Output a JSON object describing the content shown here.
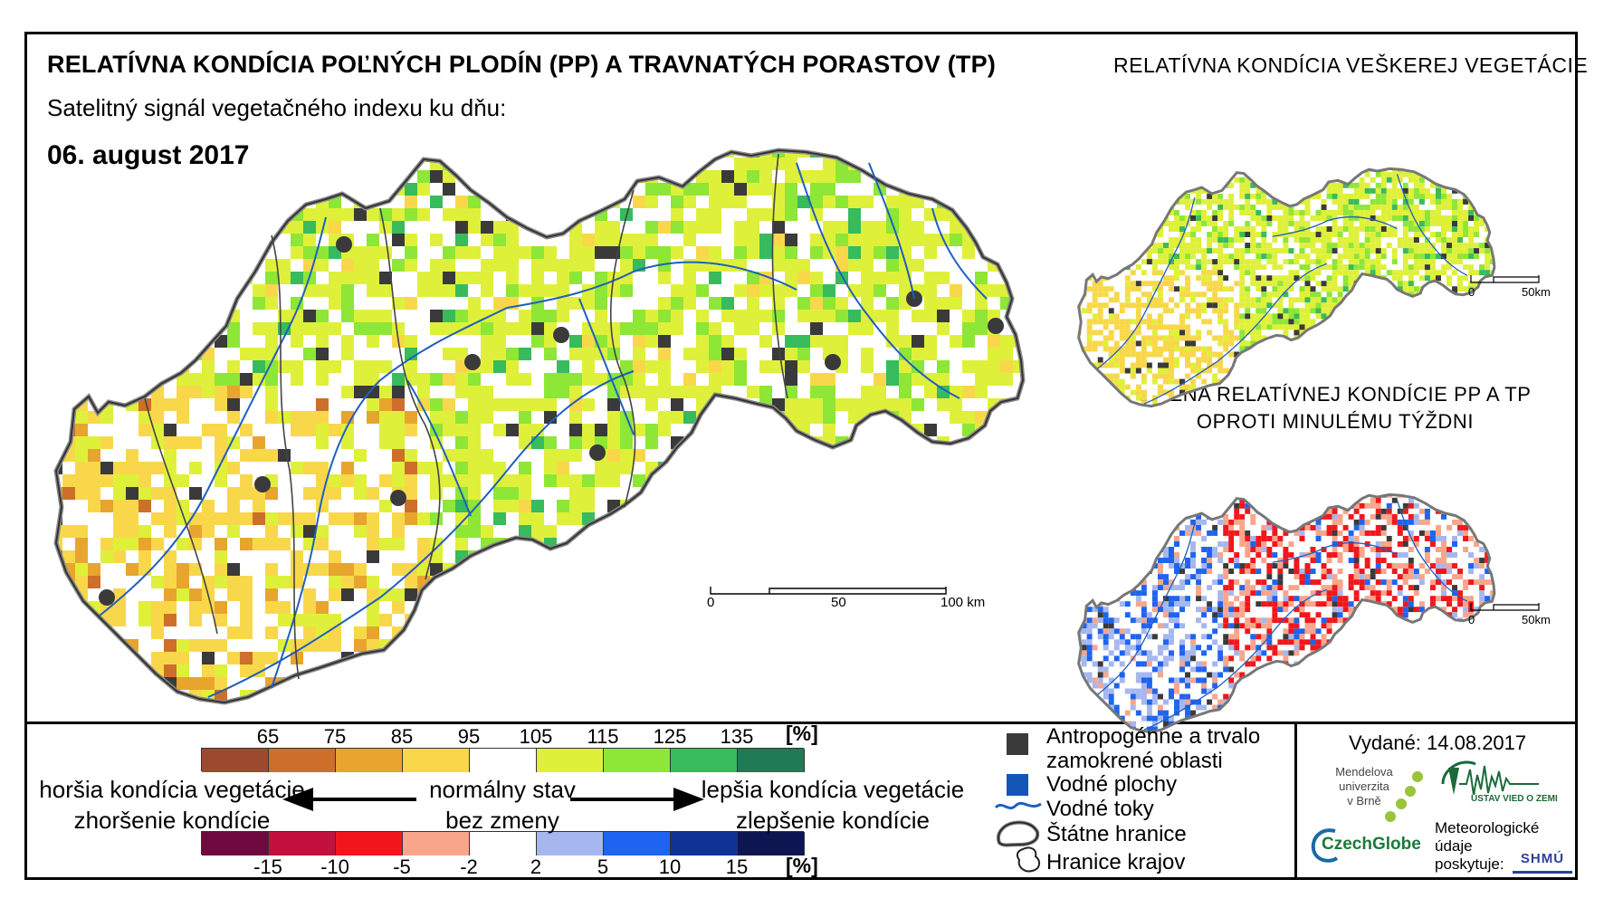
{
  "title": "RELATÍVNA KONDÍCIA POĽNÝCH PLODÍN (PP) A TRAVNATÝCH PORASTOV (TP)",
  "subtitle": "Satelitný signál vegetačného indexu ku dňu:",
  "date": "06. august 2017",
  "side_title_1": "RELATÍVNA KONDÍCIA VEŠKEREJ VEGETÁCIE",
  "side_title_2_line1": "ZMENA RELATÍVNEJ KONDÍCIE PP A TP",
  "side_title_2_line2": "OPROTI MINULÉMU TÝŽDNI",
  "scales": {
    "main": {
      "a": "0",
      "b": "50",
      "c": "100 km"
    },
    "small1": {
      "a": "0",
      "b": "50km"
    },
    "small2": {
      "a": "0",
      "b": "50km"
    }
  },
  "legend": {
    "condition_unit": "[%]",
    "condition_ticks": [
      "65",
      "75",
      "85",
      "95",
      "105",
      "115",
      "125",
      "135"
    ],
    "condition_colors": [
      "#9b4a2f",
      "#cd6f2a",
      "#e7a52e",
      "#f8d84a",
      "#ffffff",
      "#dff03a",
      "#8ee636",
      "#37bb5c",
      "#1f7a55"
    ],
    "change_unit": "[%]",
    "change_ticks": [
      "-15",
      "-10",
      "-5",
      "-2",
      "2",
      "5",
      "10",
      "15"
    ],
    "change_colors": [
      "#6e0a3f",
      "#c4103c",
      "#f2161b",
      "#f8a58b",
      "#ffffff",
      "#a6b7ef",
      "#1e64f0",
      "#0e3296",
      "#0d1650"
    ],
    "worse_line1": "horšia kondícia vegetácie",
    "worse_line2": "zhoršenie kondície",
    "normal_line1": "normálny stav",
    "normal_line2": "bez zmeny",
    "better_line1": "lepšia kondícia vegetácie",
    "better_line2": "zlepšenie kondície"
  },
  "map_legend": {
    "anthropogenic_line1": "Antropogénne a trvalo",
    "anthropogenic_line2": "zamokrené oblasti",
    "water_bodies": "Vodné plochy",
    "rivers": "Vodné toky",
    "state_border": "Štátne hranice",
    "region_border": "Hranice krajov",
    "anthropogenic_color": "#3a3a3a",
    "water_color": "#1455b8",
    "river_color": "#1f5fbf"
  },
  "issued": "Vydané: 14.08.2017",
  "logos": {
    "mendel_line1": "Mendelova",
    "mendel_line2": "univerzita",
    "mendel_line3": "v Brně",
    "czechglobe": "CzechGlobe",
    "uvz_text": "ÚSTAV VIED O ZEMI",
    "meteo_line1": "Meteorologické",
    "meteo_line2": "údaje",
    "meteo_line3": "poskytuje:",
    "shmu": "SHMÚ"
  }
}
